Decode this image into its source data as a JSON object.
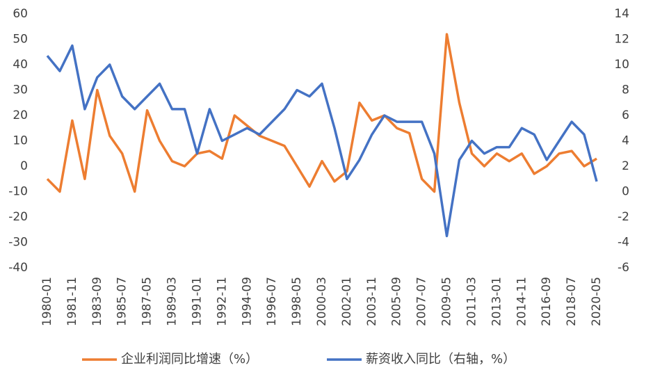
{
  "chart_data": {
    "type": "line",
    "categories": [
      "1980-01",
      null,
      "1981-11",
      null,
      "1983-09",
      null,
      "1985-07",
      null,
      "1987-05",
      null,
      "1989-03",
      null,
      "1991-01",
      null,
      "1992-11",
      null,
      "1994-09",
      null,
      "1996-07",
      null,
      "1998-05",
      null,
      "2000-03",
      null,
      "2002-01",
      null,
      "2003-11",
      null,
      "2005-09",
      null,
      "2007-07",
      null,
      "2009-05",
      null,
      "2011-03",
      null,
      "2013-01",
      null,
      "2014-11",
      null,
      "2016-09",
      null,
      "2018-07",
      null,
      "2020-05"
    ],
    "series": [
      {
        "name": "企业利润同比增速（%）",
        "color": "#ED7D31",
        "values": [
          -5,
          -10,
          18,
          -5,
          30,
          12,
          5,
          -10,
          22,
          10,
          2,
          0,
          5,
          6,
          3,
          20,
          16,
          12,
          10,
          8,
          0,
          -8,
          2,
          -6,
          -2,
          25,
          18,
          20,
          15,
          13,
          -5,
          -10,
          52,
          25,
          5,
          0,
          5,
          2,
          5,
          -3,
          0,
          5,
          6,
          0,
          3
        ]
      },
      {
        "name": "薪资收入同比（右轴，%）",
        "color": "#4472C4",
        "axis": "y2",
        "values": [
          10.7,
          9.5,
          11.5,
          6.5,
          9,
          10,
          7.5,
          6.5,
          7.5,
          8.5,
          6.5,
          6.5,
          3,
          6.5,
          4,
          4.5,
          5,
          4.5,
          5.5,
          6.5,
          8,
          7.5,
          8.5,
          5,
          1,
          2.5,
          4.5,
          6,
          5.5,
          5.5,
          5.5,
          3,
          -3.5,
          2.5,
          4,
          3,
          3.5,
          3.5,
          5,
          4.5,
          2.5,
          4,
          5.5,
          4.5,
          0.8
        ]
      }
    ],
    "ylim": [
      -40,
      60
    ],
    "yticks": [
      -40,
      -30,
      -20,
      -10,
      0,
      10,
      20,
      30,
      40,
      50,
      60
    ],
    "y2lim": [
      -6,
      14
    ],
    "y2ticks": [
      -6,
      -4,
      -2,
      0,
      2,
      4,
      6,
      8,
      10,
      12,
      14
    ],
    "legend": "bottom"
  }
}
